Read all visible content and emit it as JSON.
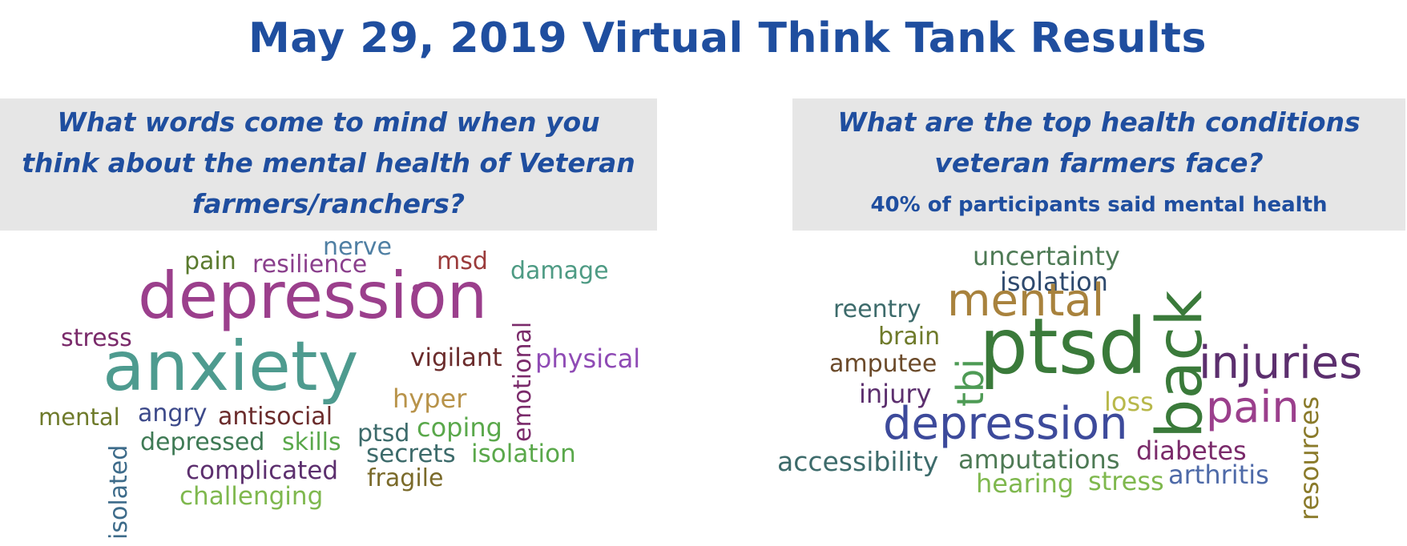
{
  "title": "May 29, 2019 Virtual Think Tank Results",
  "left_panel": {
    "question": "What words come to mind when you think about the mental health of Veteran farmers/ranchers?",
    "words": [
      "nerve",
      "pain",
      "resilience",
      "msd",
      "damage",
      "depression",
      "stress",
      "vigilant",
      "physical",
      "anxiety",
      "emotional",
      "hyper",
      "mental",
      "angry",
      "antisocial",
      "ptsd",
      "coping",
      "depressed",
      "skills",
      "secrets",
      "isolation",
      "complicated",
      "fragile",
      "challenging",
      "isolated"
    ]
  },
  "right_panel": {
    "question": "What are the top health conditions veteran farmers face?",
    "stat": "40% of participants said mental health",
    "words": [
      "uncertainty",
      "isolation",
      "reentry",
      "mental",
      "brain",
      "amputee",
      "tbi",
      "ptsd",
      "back",
      "injuries",
      "injury",
      "loss",
      "pain",
      "depression",
      "accessibility",
      "amputations",
      "diabetes",
      "hearing",
      "stress",
      "arthritis",
      "resources"
    ]
  },
  "colors": {
    "heading": "#1f4e9f",
    "box_bg": "#e6e6e6"
  }
}
